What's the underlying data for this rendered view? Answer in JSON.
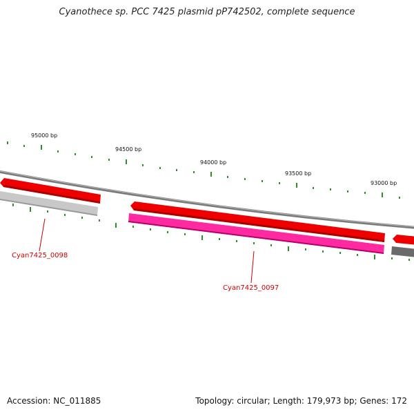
{
  "title": "Cyanothece sp. PCC 7425 plasmid pP742502, complete sequence",
  "ticks": [
    "95000 bp",
    "94500 bp",
    "94000 bp",
    "93500 bp",
    "93000 bp"
  ],
  "genes": [
    "Cyan7425_0098",
    "Cyan7425_0097"
  ],
  "footer": {
    "accession": "Accession: NC_011885",
    "summary": "Topology: circular; Length: 179,973 bp; Genes: 172"
  },
  "colors": {
    "forward_cds": "#ee0000",
    "reverse_cds": "#ff2aa0",
    "reverse_gray": "#bdbdbd",
    "backbone": "#777777",
    "tick": "#2e8b2e",
    "label": "#cc0000"
  }
}
